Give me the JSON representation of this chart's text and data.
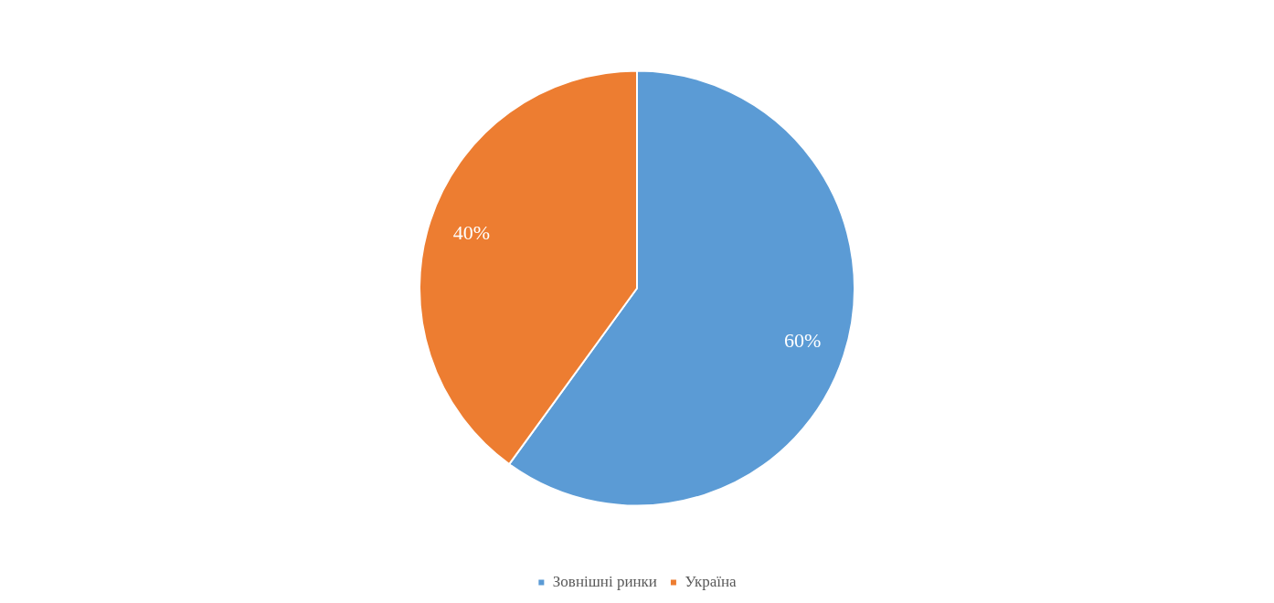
{
  "chart_data": {
    "type": "pie",
    "categories": [
      "Зовнішні ринки",
      "Україна"
    ],
    "values": [
      60,
      40
    ],
    "colors": [
      "#5b9bd5",
      "#ed7d31"
    ],
    "value_labels": [
      "60%",
      "40%"
    ],
    "legend": "bottom"
  }
}
